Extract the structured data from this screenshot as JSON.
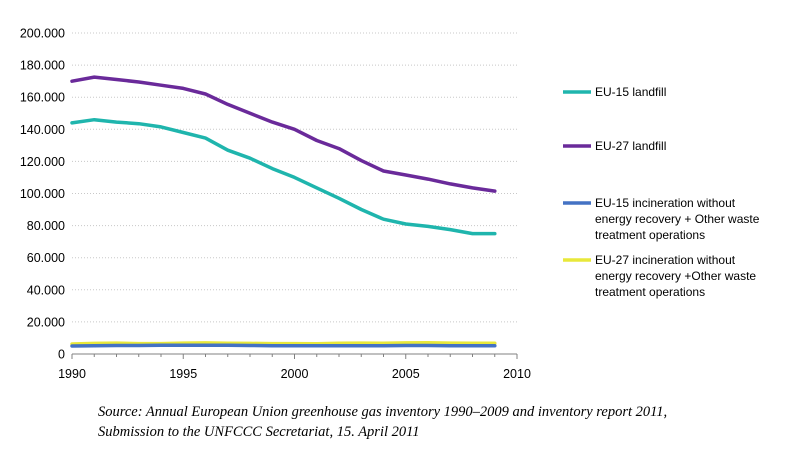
{
  "chart_data": {
    "type": "line",
    "title": "",
    "xlabel": "",
    "ylabel": "",
    "xlim": [
      1990,
      2010
    ],
    "ylim": [
      0,
      200000
    ],
    "x_ticks": [
      "1990",
      "1995",
      "2000",
      "2005",
      "2010"
    ],
    "y_ticks": [
      "0",
      "20.000",
      "40.000",
      "60.000",
      "80.000",
      "100.000",
      "120.000",
      "140.000",
      "160.000",
      "180.000",
      "200.000"
    ],
    "grid": "horizontal dotted",
    "legend_position": "right",
    "x": [
      1990,
      1991,
      1992,
      1993,
      1994,
      1995,
      1996,
      1997,
      1998,
      1999,
      2000,
      2001,
      2002,
      2003,
      2004,
      2005,
      2006,
      2007,
      2008,
      2009
    ],
    "series": [
      {
        "name": "EU-15 landfill",
        "legend_lines": [
          "EU-15 landfill"
        ],
        "color": "#1fb5ad",
        "values": [
          144000,
          146000,
          144500,
          143500,
          141500,
          138000,
          134500,
          127000,
          122000,
          115500,
          110000,
          103500,
          97000,
          90000,
          84000,
          81000,
          79500,
          77500,
          75000,
          75000
        ]
      },
      {
        "name": "EU-27 landfill",
        "legend_lines": [
          "EU-27 landfill"
        ],
        "color": "#6a2a9a",
        "values": [
          170000,
          172500,
          171000,
          169500,
          167500,
          165500,
          162000,
          155500,
          150000,
          144500,
          140000,
          133000,
          128000,
          120500,
          114000,
          111500,
          109000,
          106000,
          103500,
          101500
        ]
      },
      {
        "name": "EU-15 incineration without energy recovery + Other waste treatment operations",
        "legend_lines": [
          "EU-15 incineration without",
          "energy recovery + Other waste",
          "treatment operations"
        ],
        "color": "#4472c4",
        "values": [
          5000,
          5200,
          5300,
          5300,
          5400,
          5500,
          5500,
          5400,
          5300,
          5200,
          5200,
          5100,
          5100,
          5100,
          5200,
          5300,
          5300,
          5200,
          5100,
          5100
        ]
      },
      {
        "name": "EU-27 incineration without energy recovery +Other waste treatment operations",
        "legend_lines": [
          "EU-27 incineration without",
          "energy recovery +Other waste",
          "treatment operations"
        ],
        "color": "#e8e83a",
        "values": [
          6200,
          6600,
          6800,
          6500,
          6500,
          6800,
          6900,
          6700,
          6600,
          6500,
          6500,
          6400,
          6700,
          6800,
          6700,
          6900,
          7000,
          6800,
          6700,
          6700
        ]
      }
    ]
  },
  "source": {
    "line1": "Source: Annual European Union greenhouse gas inventory 1990–2009 and inventory report 2011,",
    "line2": "Submission to the UNFCCC Secretariat, 15. April 2011"
  }
}
